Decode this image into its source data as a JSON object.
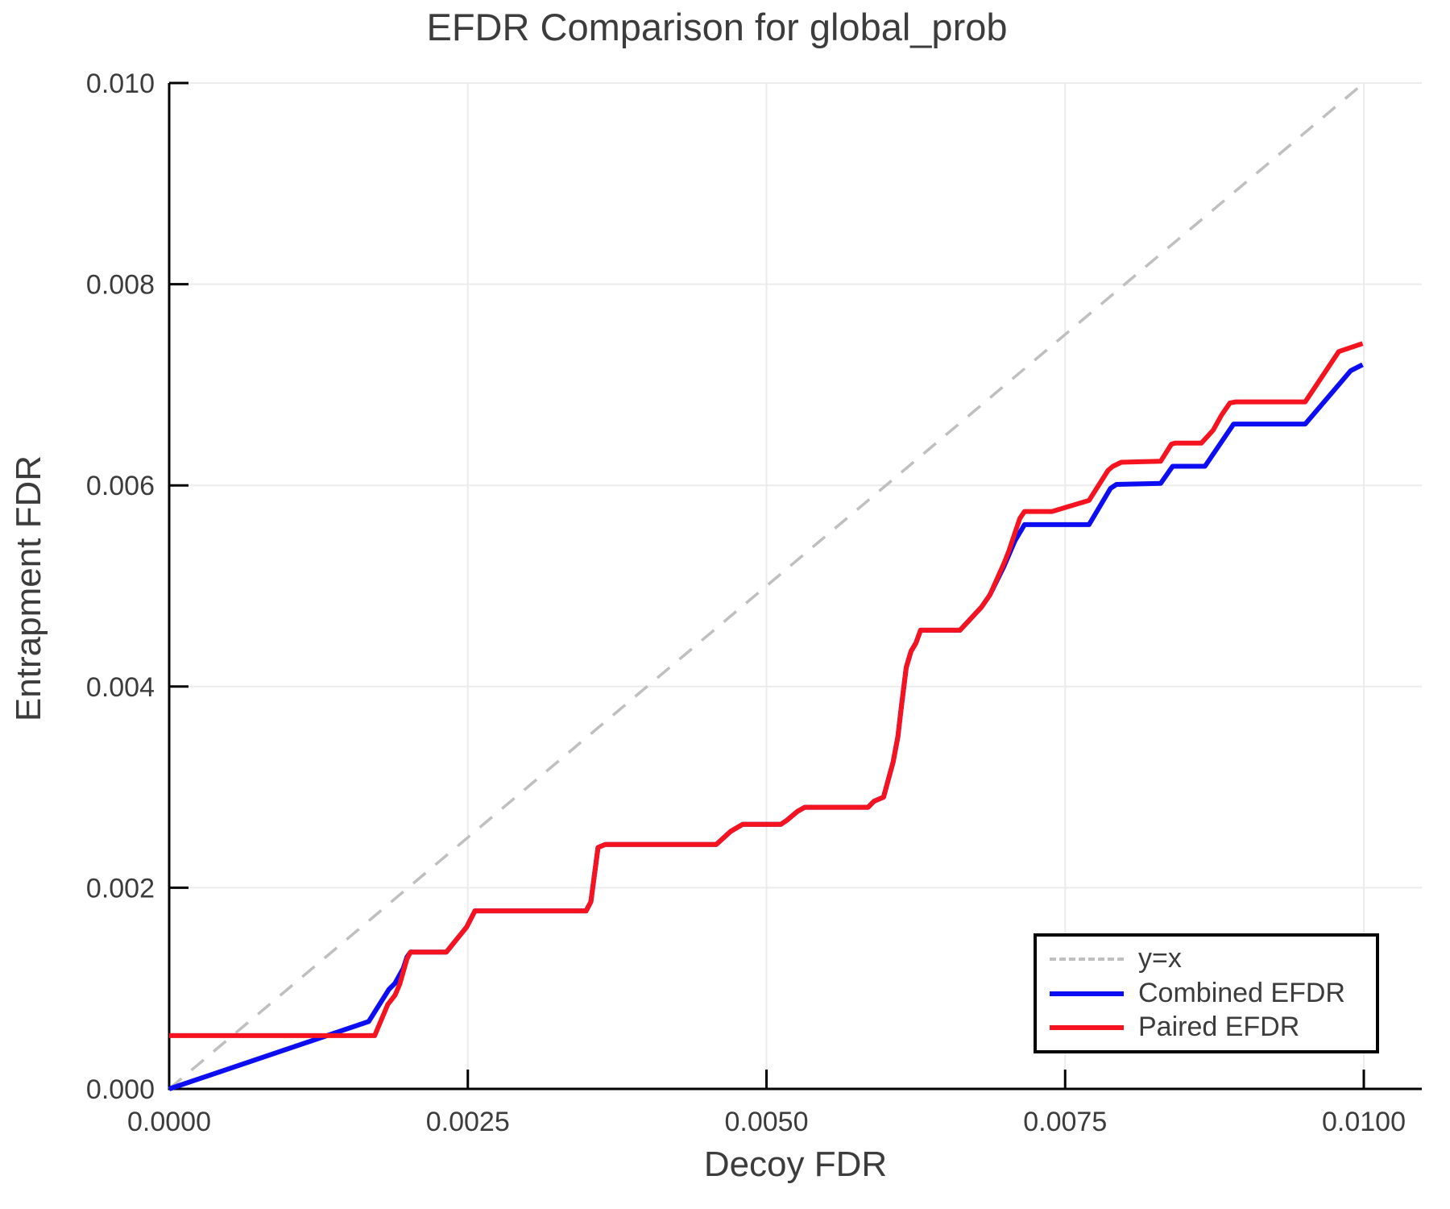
{
  "chart_data": {
    "type": "line",
    "title": "EFDR Comparison for global_prob",
    "xlabel": "Decoy FDR",
    "ylabel": "Entrapment FDR",
    "xlim": [
      0.0,
      0.0105
    ],
    "ylim": [
      0.0,
      0.01
    ],
    "grid": true,
    "x_ticks": {
      "values": [
        0.0,
        0.0025,
        0.005,
        0.0075,
        0.01
      ],
      "labels": [
        "0.0000",
        "0.0025",
        "0.0050",
        "0.0075",
        "0.0100"
      ]
    },
    "y_ticks": {
      "values": [
        0.0,
        0.002,
        0.004,
        0.006,
        0.008,
        0.01
      ],
      "labels": [
        "0.000",
        "0.002",
        "0.004",
        "0.006",
        "0.008",
        "0.010"
      ]
    },
    "colors": {
      "identity_line": "#bfbfbf",
      "combined": "#0d0df2",
      "paired": "#f5131f",
      "grid": "#ebebeb",
      "spine": "#000000",
      "text": "#3c3c3c"
    },
    "legend": {
      "position": "bottom-right",
      "entries": [
        {
          "label": "y=x",
          "style": "dashed",
          "color": "#bfbfbf"
        },
        {
          "label": "Combined EFDR",
          "style": "solid",
          "color": "#0d0df2"
        },
        {
          "label": "Paired EFDR",
          "style": "solid",
          "color": "#f5131f"
        }
      ]
    },
    "series": [
      {
        "name": "y=x",
        "style": "dashed",
        "color": "#bfbfbf",
        "width": 3.5,
        "points": [
          [
            0.0,
            0.0
          ],
          [
            0.01,
            0.01
          ]
        ]
      },
      {
        "name": "Combined EFDR",
        "style": "solid",
        "color": "#0d0df2",
        "width": 6,
        "points": [
          [
            0.0,
            0.0
          ],
          [
            0.00167,
            0.00067
          ],
          [
            0.00184,
            0.00099
          ],
          [
            0.00189,
            0.00105
          ],
          [
            0.00196,
            0.0012
          ],
          [
            0.00199,
            0.00131
          ],
          [
            0.00202,
            0.00136
          ],
          [
            0.00232,
            0.00136
          ],
          [
            0.00249,
            0.00161
          ],
          [
            0.00256,
            0.00177
          ],
          [
            0.00349,
            0.00177
          ],
          [
            0.00353,
            0.00186
          ],
          [
            0.00359,
            0.0024
          ],
          [
            0.00365,
            0.00243
          ],
          [
            0.00458,
            0.00243
          ],
          [
            0.0047,
            0.00256
          ],
          [
            0.0048,
            0.00263
          ],
          [
            0.00512,
            0.00263
          ],
          [
            0.00517,
            0.00267
          ],
          [
            0.00526,
            0.00276
          ],
          [
            0.00532,
            0.0028
          ],
          [
            0.00585,
            0.0028
          ],
          [
            0.0059,
            0.00286
          ],
          [
            0.00596,
            0.00289
          ],
          [
            0.00598,
            0.0029
          ],
          [
            0.00606,
            0.00325
          ],
          [
            0.0061,
            0.0035
          ],
          [
            0.00613,
            0.00381
          ],
          [
            0.00617,
            0.00419
          ],
          [
            0.00621,
            0.00435
          ],
          [
            0.00625,
            0.00443
          ],
          [
            0.00629,
            0.00456
          ],
          [
            0.00662,
            0.00456
          ],
          [
            0.0068,
            0.00479
          ],
          [
            0.00687,
            0.00491
          ],
          [
            0.00699,
            0.0052
          ],
          [
            0.00708,
            0.00545
          ],
          [
            0.00713,
            0.00555
          ],
          [
            0.00716,
            0.00561
          ],
          [
            0.0077,
            0.00561
          ],
          [
            0.00788,
            0.00597
          ],
          [
            0.00793,
            0.00601
          ],
          [
            0.0083,
            0.00602
          ],
          [
            0.0084,
            0.00619
          ],
          [
            0.00867,
            0.00619
          ],
          [
            0.00891,
            0.00661
          ],
          [
            0.00951,
            0.00661
          ],
          [
            0.00989,
            0.00714
          ],
          [
            0.00999,
            0.0072
          ]
        ]
      },
      {
        "name": "Paired EFDR",
        "style": "solid",
        "color": "#f5131f",
        "width": 6,
        "points": [
          [
            0.0,
            0.00053
          ],
          [
            0.00172,
            0.00053
          ],
          [
            0.00183,
            0.00084
          ],
          [
            0.00189,
            0.00093
          ],
          [
            0.00193,
            0.00104
          ],
          [
            0.00199,
            0.00129
          ],
          [
            0.00202,
            0.00136
          ],
          [
            0.00232,
            0.00136
          ],
          [
            0.00249,
            0.00161
          ],
          [
            0.00256,
            0.00177
          ],
          [
            0.00349,
            0.00177
          ],
          [
            0.00353,
            0.00186
          ],
          [
            0.00359,
            0.0024
          ],
          [
            0.00365,
            0.00243
          ],
          [
            0.00458,
            0.00243
          ],
          [
            0.0047,
            0.00256
          ],
          [
            0.0048,
            0.00263
          ],
          [
            0.00512,
            0.00263
          ],
          [
            0.00517,
            0.00267
          ],
          [
            0.00526,
            0.00276
          ],
          [
            0.00532,
            0.0028
          ],
          [
            0.00585,
            0.0028
          ],
          [
            0.0059,
            0.00286
          ],
          [
            0.00596,
            0.00289
          ],
          [
            0.00598,
            0.0029
          ],
          [
            0.00606,
            0.00325
          ],
          [
            0.0061,
            0.0035
          ],
          [
            0.00613,
            0.00381
          ],
          [
            0.00617,
            0.00419
          ],
          [
            0.00621,
            0.00435
          ],
          [
            0.00625,
            0.00443
          ],
          [
            0.00629,
            0.00456
          ],
          [
            0.00662,
            0.00456
          ],
          [
            0.0068,
            0.00479
          ],
          [
            0.00687,
            0.00491
          ],
          [
            0.00699,
            0.00523
          ],
          [
            0.00703,
            0.00535
          ],
          [
            0.00708,
            0.00553
          ],
          [
            0.00712,
            0.00567
          ],
          [
            0.00716,
            0.00574
          ],
          [
            0.00739,
            0.00574
          ],
          [
            0.00753,
            0.00579
          ],
          [
            0.0077,
            0.00585
          ],
          [
            0.00786,
            0.00615
          ],
          [
            0.0079,
            0.00619
          ],
          [
            0.00797,
            0.00623
          ],
          [
            0.0083,
            0.00624
          ],
          [
            0.00839,
            0.00641
          ],
          [
            0.00842,
            0.00642
          ],
          [
            0.00864,
            0.00642
          ],
          [
            0.00874,
            0.00655
          ],
          [
            0.00881,
            0.0067
          ],
          [
            0.00888,
            0.00682
          ],
          [
            0.00893,
            0.00683
          ],
          [
            0.00951,
            0.00683
          ],
          [
            0.00979,
            0.00733
          ],
          [
            0.00989,
            0.00737
          ],
          [
            0.00999,
            0.00741
          ]
        ]
      }
    ]
  }
}
